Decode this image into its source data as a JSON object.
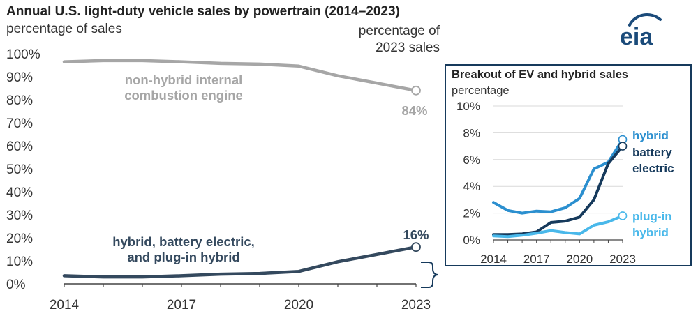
{
  "header": {
    "title": "Annual U.S. light-duty vehicle sales by powertrain (2014–2023)",
    "y_unit": "percentage of sales",
    "right_unit_line1": "percentage of",
    "right_unit_line2": "2023 sales",
    "logo_text": "eia"
  },
  "inset": {
    "title": "Breakout of EV and hybrid sales",
    "unit": "percentage"
  },
  "colors": {
    "ice": "#a6a6a6",
    "ev_total": "#34495e",
    "hybrid": "#2b8fcf",
    "battery_electric": "#163a5c",
    "plugin_hybrid": "#49b8ea",
    "axis": "#444444",
    "logo": "#1b4b7a"
  },
  "chart_data": [
    {
      "type": "line",
      "title": "Annual U.S. light-duty vehicle sales by powertrain (2014–2023)",
      "ylabel": "percentage of sales",
      "x": [
        2014,
        2015,
        2016,
        2017,
        2018,
        2019,
        2020,
        2021,
        2022,
        2023
      ],
      "x_ticks": [
        "2014",
        "2017",
        "2020",
        "2023"
      ],
      "y_ticks": [
        "0%",
        "10%",
        "20%",
        "30%",
        "40%",
        "50%",
        "60%",
        "70%",
        "80%",
        "90%",
        "100%"
      ],
      "xlim": [
        2014,
        2023
      ],
      "ylim": [
        0,
        100
      ],
      "grid": false,
      "series": [
        {
          "name_line1": "non-hybrid internal",
          "name_line2": "combustion engine",
          "color_key": "ice",
          "values": [
            96.5,
            97,
            97,
            96.5,
            95.8,
            95.5,
            94.6,
            90.4,
            87.2,
            84
          ],
          "end_label": "84%"
        },
        {
          "name_line1": "hybrid, battery electric,",
          "name_line2": "and plug-in hybrid",
          "color_key": "ev_total",
          "values": [
            3.5,
            3,
            3,
            3.5,
            4.2,
            4.5,
            5.4,
            9.6,
            12.8,
            16
          ],
          "end_label": "16%"
        }
      ]
    },
    {
      "type": "line",
      "title": "Breakout of EV and hybrid sales",
      "ylabel": "percentage",
      "x": [
        2014,
        2015,
        2016,
        2017,
        2018,
        2019,
        2020,
        2021,
        2022,
        2023
      ],
      "x_ticks": [
        "2014",
        "2017",
        "2020",
        "2023"
      ],
      "y_ticks": [
        "0%",
        "2%",
        "4%",
        "6%",
        "8%",
        "10%"
      ],
      "xlim": [
        2014,
        2023
      ],
      "ylim": [
        0,
        10
      ],
      "grid": true,
      "series": [
        {
          "name_line1": "hybrid",
          "name_line2": "",
          "color_key": "hybrid",
          "values": [
            2.8,
            2.2,
            2.0,
            2.15,
            2.1,
            2.4,
            3.1,
            5.3,
            5.8,
            7.5
          ]
        },
        {
          "name_line1": "battery",
          "name_line2": "electric",
          "color_key": "battery_electric",
          "values": [
            0.4,
            0.4,
            0.45,
            0.6,
            1.3,
            1.4,
            1.7,
            3.0,
            5.7,
            7.0
          ]
        },
        {
          "name_line1": "plug-in",
          "name_line2": "hybrid",
          "color_key": "plugin_hybrid",
          "values": [
            0.3,
            0.25,
            0.35,
            0.5,
            0.7,
            0.55,
            0.45,
            1.1,
            1.35,
            1.8
          ]
        }
      ]
    }
  ]
}
